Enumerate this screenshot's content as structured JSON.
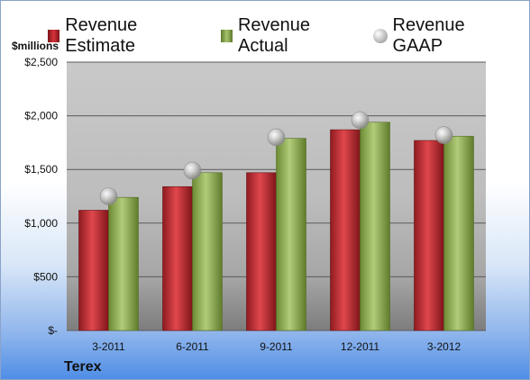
{
  "chart_data": {
    "type": "bar",
    "units": "$millions",
    "company": "Terex",
    "categories": [
      "3-2011",
      "6-2011",
      "9-2011",
      "12-2011",
      "3-2012"
    ],
    "series": [
      {
        "name": "Revenue Estimate",
        "type": "bar",
        "color": "#c0262c",
        "values": [
          1120,
          1340,
          1470,
          1870,
          1770
        ]
      },
      {
        "name": "Revenue Actual",
        "type": "bar",
        "color": "#8fac52",
        "values": [
          1240,
          1470,
          1790,
          1940,
          1810
        ]
      },
      {
        "name": "Revenue GAAP",
        "type": "scatter",
        "color": "#b8b8b8",
        "values": [
          1250,
          1490,
          1800,
          1960,
          1820
        ]
      }
    ],
    "yticks": [
      "$-",
      "$500",
      "$1,000",
      "$1,500",
      "$2,000",
      "$2,500"
    ],
    "ylim": [
      0,
      2500
    ],
    "grid": true,
    "legend_position": "top"
  }
}
